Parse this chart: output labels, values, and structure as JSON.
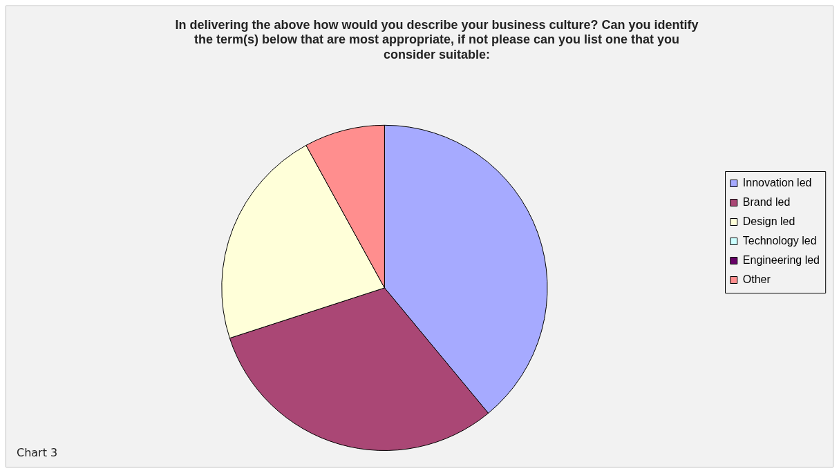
{
  "chart_data": {
    "type": "pie",
    "title": "In delivering the above how would you describe your business culture? Can you identify the term(s) below that are most appropriate, if not please can you list one that you consider suitable:",
    "categories": [
      "Innovation led",
      "Brand led",
      "Design led",
      "Technology led",
      "Engineering led",
      "Other"
    ],
    "values": [
      39,
      31,
      22,
      0,
      0,
      8
    ],
    "colors": [
      "#a6aaff",
      "#aa4775",
      "#ffffd9",
      "#ccffff",
      "#660066",
      "#ff8e8e"
    ],
    "legend": "right",
    "annotations": [
      "Chart 3"
    ]
  }
}
